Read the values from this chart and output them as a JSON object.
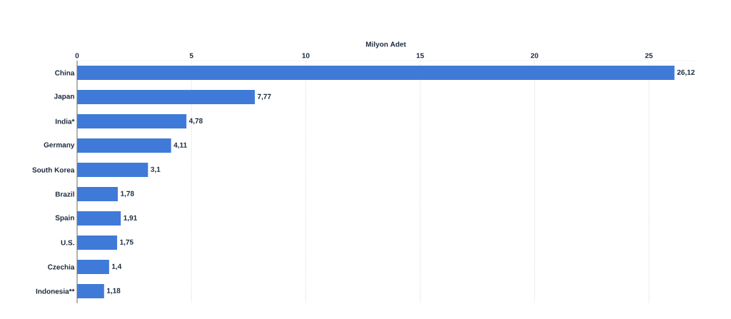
{
  "chart_data": {
    "type": "bar",
    "orientation": "horizontal",
    "xlabel": "Milyon Adet",
    "categories": [
      "China",
      "Japan",
      "India*",
      "Germany",
      "South Korea",
      "Brazil",
      "Spain",
      "U.S.",
      "Czechia",
      "Indonesia**"
    ],
    "values": [
      26.12,
      7.77,
      4.78,
      4.11,
      3.1,
      1.78,
      1.91,
      1.75,
      1.4,
      1.18
    ],
    "value_labels": [
      "26,12",
      "7,77",
      "4,78",
      "4,11",
      "3,1",
      "1,78",
      "1,91",
      "1,75",
      "1,4",
      "1,18"
    ],
    "color": "#3f7ad8",
    "xlim": [
      0,
      27
    ],
    "xticks": [
      0,
      5,
      10,
      15,
      20,
      25
    ],
    "grid": "x"
  }
}
